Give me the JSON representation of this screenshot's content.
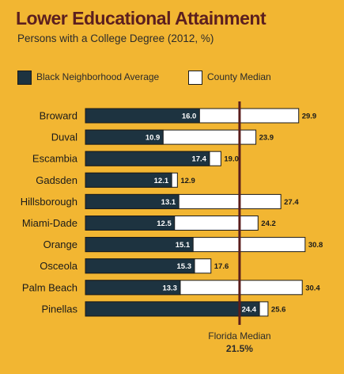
{
  "title": "Lower Educational Attainment",
  "subtitle": "Persons with a College Degree (2012, %)",
  "legend": {
    "black_avg": "Black Neighborhood Average",
    "county_median": "County Median"
  },
  "reference": {
    "label": "Florida Median",
    "value_label": "21.5%",
    "value": 21.5
  },
  "colors": {
    "background": "#F2B632",
    "black_avg": "#1D3340",
    "county_median": "#FFFFFF",
    "title": "#5C1F1F",
    "reference_line": "#5A1D1D"
  },
  "chart_data": {
    "type": "bar",
    "orientation": "horizontal",
    "categories": [
      "Broward",
      "Duval",
      "Escambia",
      "Gadsden",
      "Hillsborough",
      "Miami-Dade",
      "Orange",
      "Osceola",
      "Palm Beach",
      "Pinellas"
    ],
    "series": [
      {
        "name": "Black Neighborhood Average",
        "values": [
          16.0,
          10.9,
          17.4,
          12.1,
          13.1,
          12.5,
          15.1,
          15.3,
          13.3,
          24.4
        ]
      },
      {
        "name": "County Median",
        "values": [
          29.9,
          23.9,
          19.0,
          12.9,
          27.4,
          24.2,
          30.8,
          17.6,
          30.4,
          25.6
        ]
      }
    ],
    "value_labels": {
      "black": [
        "16.0",
        "10.9",
        "17.4",
        "12.1",
        "13.1",
        "12.5",
        "15.1",
        "15.3",
        "13.3",
        "24.4"
      ],
      "county": [
        "29.9",
        "23.9",
        "19.0",
        "12.9",
        "27.4",
        "24.2",
        "30.8",
        "17.6",
        "30.4",
        "25.6"
      ]
    },
    "xlim": [
      0,
      31
    ],
    "grid": false,
    "legend_position": "top-left"
  }
}
